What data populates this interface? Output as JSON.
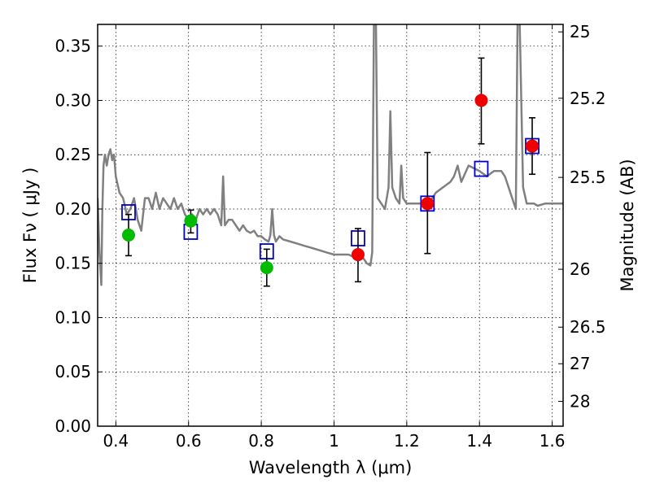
{
  "chart_data": {
    "type": "scatter",
    "xlabel": "Wavelength  λ (μm)",
    "ylabel": "Flux  Fν  ( μJy )",
    "ylabel_right": "Magnitude (AB)",
    "xlim": [
      0.35,
      1.63
    ],
    "ylim": [
      0.0,
      0.37
    ],
    "grid": true,
    "x_ticks": [
      0.4,
      0.6,
      0.8,
      1.0,
      1.2,
      1.4,
      1.6
    ],
    "x_tick_labels": [
      "0.4",
      "0.6",
      "0.8",
      "1",
      "1.2",
      "1.4",
      "1.6"
    ],
    "y_ticks": [
      0.0,
      0.05,
      0.1,
      0.15,
      0.2,
      0.25,
      0.3,
      0.35
    ],
    "y_tick_labels": [
      "0.00",
      "0.05",
      "0.10",
      "0.15",
      "0.20",
      "0.25",
      "0.30",
      "0.35"
    ],
    "right_ticks": [
      {
        "label": "25",
        "flux": 0.3631
      },
      {
        "label": "25.2",
        "flux": 0.302
      },
      {
        "label": "25.5",
        "flux": 0.2291
      },
      {
        "label": "26",
        "flux": 0.1445
      },
      {
        "label": "26.5",
        "flux": 0.0912
      },
      {
        "label": "27",
        "flux": 0.0575
      },
      {
        "label": "28",
        "flux": 0.0229
      }
    ],
    "series": [
      {
        "name": "model spectrum",
        "kind": "line",
        "color": "#808080",
        "x": [
          0.35,
          0.355,
          0.36,
          0.363,
          0.366,
          0.37,
          0.375,
          0.38,
          0.385,
          0.39,
          0.395,
          0.4,
          0.41,
          0.42,
          0.43,
          0.44,
          0.45,
          0.46,
          0.47,
          0.48,
          0.49,
          0.5,
          0.51,
          0.52,
          0.53,
          0.54,
          0.55,
          0.56,
          0.57,
          0.58,
          0.59,
          0.6,
          0.61,
          0.62,
          0.63,
          0.64,
          0.65,
          0.66,
          0.67,
          0.68,
          0.69,
          0.695,
          0.7,
          0.71,
          0.72,
          0.73,
          0.74,
          0.75,
          0.76,
          0.77,
          0.78,
          0.79,
          0.8,
          0.81,
          0.82,
          0.825,
          0.83,
          0.835,
          0.84,
          0.85,
          0.86,
          0.88,
          0.9,
          0.92,
          0.94,
          0.96,
          0.98,
          1.0,
          1.02,
          1.04,
          1.06,
          1.08,
          1.09,
          1.1,
          1.105,
          1.11,
          1.115,
          1.12,
          1.13,
          1.14,
          1.15,
          1.155,
          1.16,
          1.17,
          1.18,
          1.185,
          1.19,
          1.2,
          1.22,
          1.24,
          1.26,
          1.28,
          1.3,
          1.32,
          1.33,
          1.34,
          1.35,
          1.37,
          1.4,
          1.42,
          1.44,
          1.46,
          1.47,
          1.48,
          1.49,
          1.5,
          1.505,
          1.51,
          1.515,
          1.52,
          1.53,
          1.54,
          1.55,
          1.56,
          1.58,
          1.6,
          1.63
        ],
        "y": [
          0.21,
          0.16,
          0.13,
          0.2,
          0.24,
          0.25,
          0.24,
          0.25,
          0.255,
          0.245,
          0.25,
          0.23,
          0.215,
          0.21,
          0.195,
          0.2,
          0.21,
          0.19,
          0.18,
          0.21,
          0.21,
          0.2,
          0.215,
          0.2,
          0.21,
          0.205,
          0.2,
          0.21,
          0.2,
          0.205,
          0.195,
          0.19,
          0.195,
          0.19,
          0.2,
          0.195,
          0.2,
          0.195,
          0.2,
          0.195,
          0.185,
          0.23,
          0.185,
          0.19,
          0.19,
          0.185,
          0.18,
          0.185,
          0.18,
          0.178,
          0.18,
          0.175,
          0.175,
          0.172,
          0.17,
          0.176,
          0.2,
          0.176,
          0.17,
          0.175,
          0.172,
          0.17,
          0.168,
          0.166,
          0.164,
          0.162,
          0.16,
          0.158,
          0.158,
          0.158,
          0.155,
          0.155,
          0.15,
          0.148,
          0.16,
          0.38,
          0.38,
          0.21,
          0.205,
          0.2,
          0.22,
          0.29,
          0.22,
          0.21,
          0.205,
          0.24,
          0.21,
          0.205,
          0.205,
          0.205,
          0.205,
          0.215,
          0.22,
          0.225,
          0.23,
          0.24,
          0.225,
          0.24,
          0.235,
          0.23,
          0.235,
          0.235,
          0.23,
          0.22,
          0.21,
          0.2,
          0.38,
          0.38,
          0.3,
          0.22,
          0.205,
          0.205,
          0.205,
          0.203,
          0.205,
          0.205,
          0.205
        ]
      },
      {
        "name": "model photometry",
        "kind": "open-square",
        "color": "#0000cc",
        "x": [
          0.435,
          0.606,
          0.815,
          1.066,
          1.257,
          1.405,
          1.545
        ],
        "y": [
          0.197,
          0.179,
          0.161,
          0.173,
          0.205,
          0.237,
          0.258
        ]
      },
      {
        "name": "observed (green)",
        "kind": "filled-circle",
        "color": "#00bb00",
        "x": [
          0.435,
          0.606,
          0.815
        ],
        "y": [
          0.176,
          0.189,
          0.146
        ],
        "err_low": [
          0.157,
          0.178,
          0.129
        ],
        "err_high": [
          0.195,
          0.199,
          0.163
        ]
      },
      {
        "name": "observed (red)",
        "kind": "filled-circle",
        "color": "#ee0000",
        "x": [
          1.066,
          1.257,
          1.405,
          1.545
        ],
        "y": [
          0.158,
          0.205,
          0.3,
          0.258
        ],
        "err_low": [
          0.133,
          0.159,
          0.26,
          0.232
        ],
        "err_high": [
          0.182,
          0.252,
          0.339,
          0.284
        ]
      }
    ]
  }
}
